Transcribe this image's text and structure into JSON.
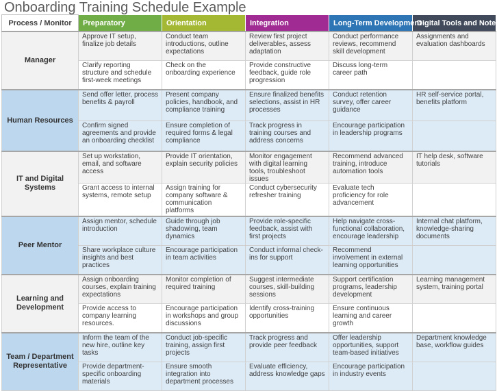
{
  "title": "Onboarding Training Schedule Example",
  "header": {
    "process": "Process / Monitor",
    "columns": [
      {
        "label": "Preparatory",
        "color": "#70ad47"
      },
      {
        "label": "Orientation",
        "color": "#a5b833"
      },
      {
        "label": "Integration",
        "color": "#a02b93"
      },
      {
        "label": "Long-Term Development",
        "color": "#2e75b6"
      },
      {
        "label": "Digital Tools and Notes",
        "color": "#404a5a"
      }
    ]
  },
  "rows": [
    {
      "name": "Manager",
      "cells": [
        [
          "Approve IT setup, finalize job details",
          "Conduct team introductions, outline expectations",
          "Review first project deliverables, assess adaptation",
          "Conduct performance reviews, recommend skill development",
          "Assignments and evaluation dashboards"
        ],
        [
          "Clarify reporting structure and schedule first-week meetings",
          "Check on the onboarding experience",
          "Provide constructive feedback, guide role progression",
          "Discuss long-term career path",
          ""
        ]
      ]
    },
    {
      "name": "Human Resources",
      "cells": [
        [
          "Send offer letter, process benefits & payroll",
          "Present company policies, handbook, and compliance training",
          "Ensure finalized benefits selections, assist in HR processes",
          "Conduct retention survey, offer career guidance",
          "HR self-service portal, benefits platform"
        ],
        [
          "Confirm signed agreements and provide an onboarding checklist",
          "Ensure completion of required forms & legal compliance",
          "Track progress in training courses and address concerns",
          "Encourage participation in leadership programs",
          ""
        ]
      ]
    },
    {
      "name": "IT and Digital Systems",
      "cells": [
        [
          "Set up workstation, email, and software access",
          "Provide IT orientation, explain security policies",
          "Monitor engagement with digital learning tools, troubleshoot issues",
          "Recommend advanced training, introduce automation tools",
          "IT help desk, software tutorials"
        ],
        [
          "Grant access to internal systems, remote setup",
          "Assign training for company software & communication platforms",
          "Conduct cybersecurity refresher training",
          "Evaluate tech proficiency for role advancement",
          ""
        ]
      ]
    },
    {
      "name": "Peer Mentor",
      "cells": [
        [
          "Assign mentor, schedule introduction",
          "Guide through job shadowing, team dynamics",
          "Provide role-specific feedback, assist with first projects",
          "Help navigate cross-functional collaboration, encourage leadership",
          "Internal chat platform, knowledge-sharing documents"
        ],
        [
          "Share workplace culture insights and best practices",
          "Encourage participation in team activities",
          "Conduct informal check-ins for support",
          "Recommend involvement in external learning opportunities",
          ""
        ]
      ]
    },
    {
      "name": "Learning and Development",
      "cells": [
        [
          "Assign onboarding courses, explain training expectations",
          "Monitor completion of required training",
          "Suggest intermediate courses, skill-building sessions",
          "Support certification programs, leadership development",
          "Learning management system, training portal"
        ],
        [
          "Provide access to company learning resources.",
          "Encourage participation in workshops and group discussions",
          "Identify cross-training opportunities",
          "Ensure continuous learning and career growth",
          ""
        ]
      ]
    },
    {
      "name": "Team / Department Representative",
      "cells": [
        [
          "Inform the team of the new hire, outline key tasks",
          "Conduct job-specific training, assign first projects",
          "Track progress and provide peer feedback",
          "Offer leadership opportunities, support team-based initiatives",
          "Department knowledge base, workflow guides"
        ],
        [
          "Provide department-specific onboarding materials",
          "Ensure smooth integration into department processes",
          "Evaluate efficiency, address knowledge gaps",
          "Encourage participation in industry events",
          ""
        ]
      ]
    }
  ]
}
